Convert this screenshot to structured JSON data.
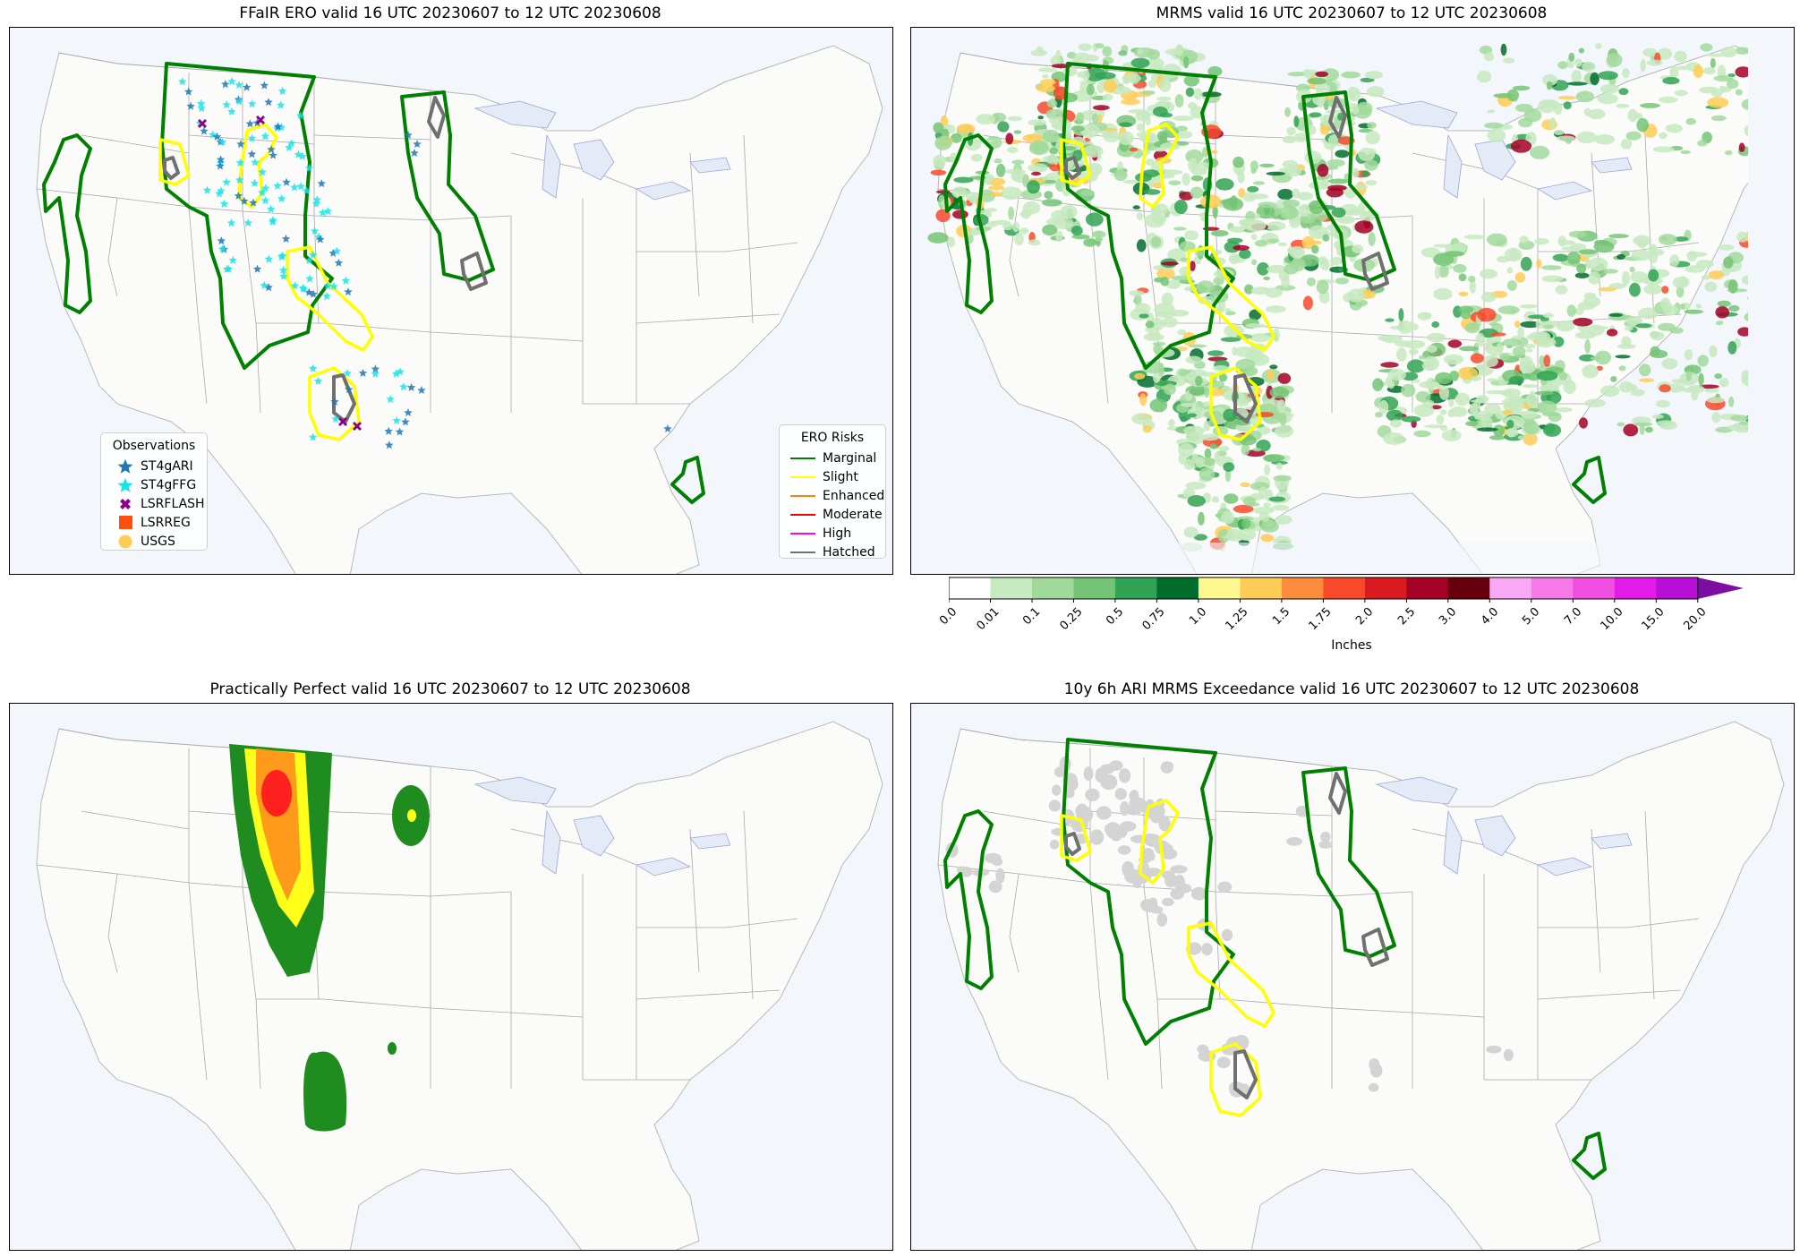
{
  "panels": [
    {
      "id": "ero",
      "title": "FFaIR ERO valid 16 UTC 20230607 to 12 UTC 20230608"
    },
    {
      "id": "mrms",
      "title": "MRMS valid 16 UTC 20230607 to 12 UTC 20230608"
    },
    {
      "id": "pp",
      "title": "Practically Perfect valid 16 UTC 20230607 to 12 UTC 20230608"
    },
    {
      "id": "ari",
      "title": "10y 6h ARI MRMS Exceedance valid 16 UTC 20230607 to 12 UTC 20230608"
    }
  ],
  "observations_legend": {
    "title": "Observations",
    "items": [
      {
        "label": "ST4gARI",
        "symbol": "star",
        "color": "#1f77b4"
      },
      {
        "label": "ST4gFFG",
        "symbol": "star",
        "color": "#17e3e8"
      },
      {
        "label": "LSRFLASH",
        "symbol": "x",
        "color": "#8b008b"
      },
      {
        "label": "LSRREG",
        "symbol": "square",
        "color": "#ff4f0f"
      },
      {
        "label": "USGS",
        "symbol": "circle",
        "color": "#ffcc55"
      }
    ]
  },
  "ero_legend": {
    "title": "ERO Risks",
    "items": [
      {
        "label": "Marginal",
        "color": "#008000"
      },
      {
        "label": "Slight",
        "color": "#ffff00"
      },
      {
        "label": "Enhanced",
        "color": "#ff7f0e"
      },
      {
        "label": "Moderate",
        "color": "#ff0000"
      },
      {
        "label": "High",
        "color": "#ff00ff"
      },
      {
        "label": "Hatched",
        "color": "#707070"
      }
    ]
  },
  "colorbar": {
    "label": "Inches",
    "ticks": [
      "0.0",
      "0.01",
      "0.1",
      "0.25",
      "0.5",
      "0.75",
      "1.0",
      "1.25",
      "1.5",
      "1.75",
      "2.0",
      "2.5",
      "3.0",
      "4.0",
      "5.0",
      "7.0",
      "10.0",
      "15.0",
      "20.0"
    ],
    "colors": [
      "#ffffff",
      "#c7e9c0",
      "#a1d99b",
      "#74c476",
      "#31a354",
      "#006d2c",
      "#fff98f",
      "#ffcd56",
      "#fd8d3c",
      "#f84a2b",
      "#d91a20",
      "#a50026",
      "#67000d",
      "#f9a8f5",
      "#f57ae8",
      "#f04ee0",
      "#e21be8",
      "#b70fd8",
      "#7a0fa0"
    ]
  },
  "colors": {
    "marginal": "#008000",
    "slight": "#ffff00",
    "hatched": "#707070",
    "pp_green": "#1e8c1e",
    "pp_yellow": "#ffff1a",
    "pp_orange": "#ff9a1a",
    "pp_red": "#ff2020",
    "exceed_gray": "#d4d4d4"
  }
}
